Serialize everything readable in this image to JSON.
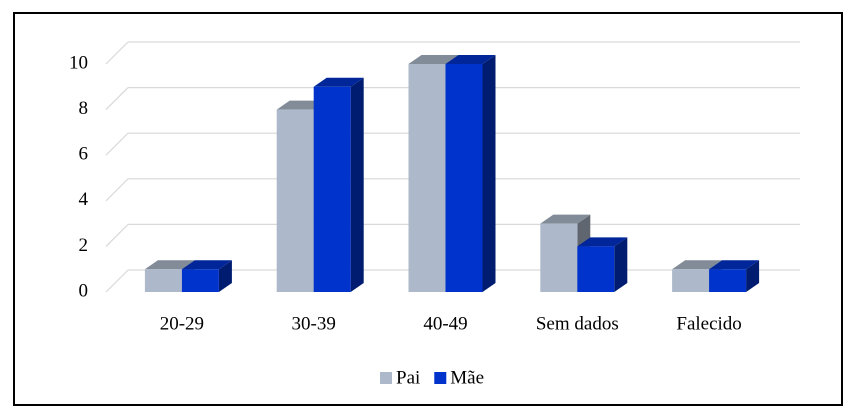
{
  "chart_data": {
    "type": "bar3d",
    "categories": [
      "20-29",
      "30-39",
      "40-49",
      "Sem dados",
      "Falecido"
    ],
    "series": [
      {
        "name": "Pai",
        "color": "#adb9ca",
        "values": [
          1,
          8,
          10,
          3,
          1
        ]
      },
      {
        "name": "Mãe",
        "color": "#0033cc",
        "values": [
          1,
          9,
          10,
          2,
          1
        ]
      }
    ],
    "ylim": [
      0,
      10
    ],
    "yticks": [
      0,
      2,
      4,
      6,
      8,
      10
    ],
    "grid": true,
    "legend": "bottom"
  }
}
